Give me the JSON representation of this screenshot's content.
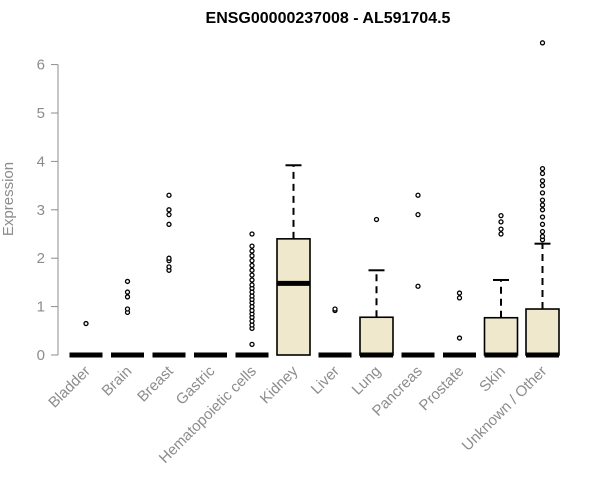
{
  "chart_data": {
    "type": "boxplot",
    "title": "ENSG00000237008 - AL591704.5",
    "xlabel": "",
    "ylabel": "Expression",
    "ylim": [
      0,
      6.5
    ],
    "yticks": [
      0,
      1,
      2,
      3,
      4,
      5,
      6
    ],
    "box_color": "#efe8cd",
    "categories": [
      "Bladder",
      "Brain",
      "Breast",
      "Gastric",
      "Hematopoietic cells",
      "Kidney",
      "Liver",
      "Lung",
      "Pancreas",
      "Prostate",
      "Skin",
      "Unknown / Other"
    ],
    "series": [
      {
        "category": "Bladder",
        "q1": 0,
        "median": 0,
        "q3": 0,
        "whisker_low": 0,
        "whisker_high": 0,
        "outliers": [
          0.65
        ]
      },
      {
        "category": "Brain",
        "q1": 0,
        "median": 0,
        "q3": 0,
        "whisker_low": 0,
        "whisker_high": 0,
        "outliers": [
          0.88,
          0.95,
          1.2,
          1.3,
          1.52
        ]
      },
      {
        "category": "Breast",
        "q1": 0,
        "median": 0,
        "q3": 0,
        "whisker_low": 0,
        "whisker_high": 0,
        "outliers": [
          1.75,
          1.82,
          1.95,
          2.0,
          2.7,
          2.9,
          3.0,
          3.3
        ]
      },
      {
        "category": "Gastric",
        "q1": 0,
        "median": 0,
        "q3": 0,
        "whisker_low": 0,
        "whisker_high": 0,
        "outliers": []
      },
      {
        "category": "Hematopoietic cells",
        "q1": 0,
        "median": 0,
        "q3": 0,
        "whisker_low": 0,
        "whisker_high": 0,
        "outliers": [
          0.22,
          0.55,
          0.62,
          0.7,
          0.78,
          0.85,
          0.92,
          1.0,
          1.08,
          1.15,
          1.22,
          1.3,
          1.38,
          1.45,
          1.55,
          1.65,
          1.75,
          1.85,
          1.95,
          2.05,
          2.15,
          2.25,
          2.5
        ]
      },
      {
        "category": "Kidney",
        "q1": 0,
        "median": 1.48,
        "q3": 2.4,
        "whisker_low": 0,
        "whisker_high": 3.92,
        "outliers": []
      },
      {
        "category": "Liver",
        "q1": 0,
        "median": 0,
        "q3": 0,
        "whisker_low": 0,
        "whisker_high": 0,
        "outliers": [
          0.92,
          0.95
        ]
      },
      {
        "category": "Lung",
        "q1": 0,
        "median": 0,
        "q3": 0.78,
        "whisker_low": 0,
        "whisker_high": 1.75,
        "outliers": [
          2.8
        ]
      },
      {
        "category": "Pancreas",
        "q1": 0,
        "median": 0,
        "q3": 0,
        "whisker_low": 0,
        "whisker_high": 0,
        "outliers": [
          1.42,
          2.9,
          3.3
        ]
      },
      {
        "category": "Prostate",
        "q1": 0,
        "median": 0,
        "q3": 0,
        "whisker_low": 0,
        "whisker_high": 0,
        "outliers": [
          0.35,
          1.18,
          1.28
        ]
      },
      {
        "category": "Skin",
        "q1": 0,
        "median": 0,
        "q3": 0.77,
        "whisker_low": 0,
        "whisker_high": 1.55,
        "outliers": [
          2.5,
          2.6,
          2.75,
          2.88
        ]
      },
      {
        "category": "Unknown / Other",
        "q1": 0,
        "median": 0,
        "q3": 0.95,
        "whisker_low": 0,
        "whisker_high": 2.3,
        "outliers": [
          2.38,
          2.45,
          2.55,
          2.7,
          2.85,
          3.0,
          3.1,
          3.2,
          3.35,
          3.5,
          3.6,
          3.75,
          3.85,
          6.45
        ]
      }
    ]
  }
}
